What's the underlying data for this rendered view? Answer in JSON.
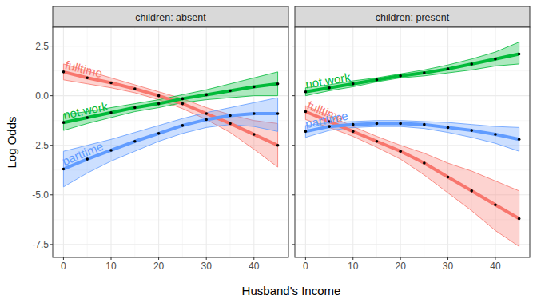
{
  "chart_data": [
    {
      "type": "line",
      "title": "children: absent",
      "x_label": "Husband's Income",
      "y_label": "Log Odds",
      "x": [
        0,
        5,
        10,
        15,
        20,
        25,
        30,
        35,
        40,
        45
      ],
      "xlim": [
        -2.25,
        47.25
      ],
      "xticks": [
        0,
        10,
        20,
        30,
        40
      ],
      "ylim": [
        -8.15,
        3.45
      ],
      "yticks": [
        -7.5,
        {
          "value": -5,
          "label": "-5.0"
        },
        -2.5,
        {
          "value": 0,
          "label": "0.0"
        },
        2.5
      ],
      "grid": true,
      "marker": "circle",
      "series": [
        {
          "name": "fulltime",
          "color": "#F8766D",
          "values": [
            1.2,
            0.9,
            0.65,
            0.35,
            0.0,
            -0.4,
            -0.9,
            -1.4,
            -1.95,
            -2.5
          ],
          "lower": [
            0.8,
            0.6,
            0.4,
            0.15,
            -0.2,
            -0.65,
            -1.2,
            -1.85,
            -2.7,
            -3.6
          ],
          "upper": [
            1.6,
            1.25,
            0.9,
            0.55,
            0.2,
            -0.15,
            -0.6,
            -0.95,
            -1.25,
            -1.4
          ]
        },
        {
          "name": "not.work",
          "color": "#00BA38",
          "values": [
            -1.35,
            -1.1,
            -0.85,
            -0.6,
            -0.4,
            -0.15,
            0.05,
            0.25,
            0.45,
            0.6
          ],
          "lower": [
            -1.75,
            -1.4,
            -1.1,
            -0.8,
            -0.6,
            -0.35,
            -0.2,
            -0.1,
            0.0,
            0.0
          ],
          "upper": [
            -0.95,
            -0.8,
            -0.6,
            -0.4,
            -0.2,
            0.05,
            0.3,
            0.6,
            0.9,
            1.2
          ]
        },
        {
          "name": "parttime",
          "color": "#619CFF",
          "values": [
            -3.7,
            -3.2,
            -2.75,
            -2.3,
            -1.9,
            -1.5,
            -1.2,
            -1.0,
            -0.9,
            -0.9
          ],
          "lower": [
            -4.6,
            -3.9,
            -3.3,
            -2.8,
            -2.3,
            -1.9,
            -1.6,
            -1.45,
            -1.55,
            -1.8
          ],
          "upper": [
            -2.8,
            -2.5,
            -2.2,
            -1.85,
            -1.5,
            -1.15,
            -0.85,
            -0.6,
            -0.35,
            -0.1
          ]
        }
      ]
    },
    {
      "type": "line",
      "title": "children: present",
      "x": [
        0,
        5,
        10,
        15,
        20,
        25,
        30,
        35,
        40,
        45
      ],
      "xlim": [
        -2.25,
        47.25
      ],
      "xticks": [
        0,
        10,
        20,
        30,
        40
      ],
      "ylim": [
        -8.15,
        3.45
      ],
      "yticks": [
        -7.5,
        -5,
        -2.5,
        0,
        2.5
      ],
      "tick_labels": "x",
      "grid": true,
      "marker": "circle",
      "series": [
        {
          "name": "fulltime",
          "color": "#F8766D",
          "values": [
            -0.8,
            -1.3,
            -1.8,
            -2.3,
            -2.8,
            -3.4,
            -4.1,
            -4.8,
            -5.5,
            -6.2
          ],
          "lower": [
            -1.2,
            -1.6,
            -2.05,
            -2.6,
            -3.2,
            -4.0,
            -4.9,
            -5.8,
            -6.8,
            -7.6
          ],
          "upper": [
            -0.5,
            -1.0,
            -1.55,
            -2.05,
            -2.5,
            -2.9,
            -3.4,
            -3.8,
            -4.3,
            -4.8
          ]
        },
        {
          "name": "not.work",
          "color": "#00BA38",
          "values": [
            0.2,
            0.4,
            0.6,
            0.8,
            1.0,
            1.15,
            1.35,
            1.6,
            1.85,
            2.1
          ],
          "lower": [
            0.0,
            0.25,
            0.45,
            0.7,
            0.9,
            1.0,
            1.15,
            1.3,
            1.5,
            1.6
          ],
          "upper": [
            0.4,
            0.55,
            0.75,
            0.9,
            1.1,
            1.3,
            1.55,
            1.85,
            2.2,
            2.7
          ]
        },
        {
          "name": "parttime",
          "color": "#619CFF",
          "values": [
            -1.8,
            -1.55,
            -1.45,
            -1.4,
            -1.4,
            -1.45,
            -1.6,
            -1.75,
            -1.95,
            -2.2
          ],
          "lower": [
            -2.1,
            -1.75,
            -1.6,
            -1.55,
            -1.55,
            -1.65,
            -1.85,
            -2.1,
            -2.4,
            -2.8
          ],
          "upper": [
            -1.5,
            -1.35,
            -1.3,
            -1.25,
            -1.25,
            -1.3,
            -1.35,
            -1.45,
            -1.55,
            -1.6
          ]
        }
      ]
    }
  ]
}
